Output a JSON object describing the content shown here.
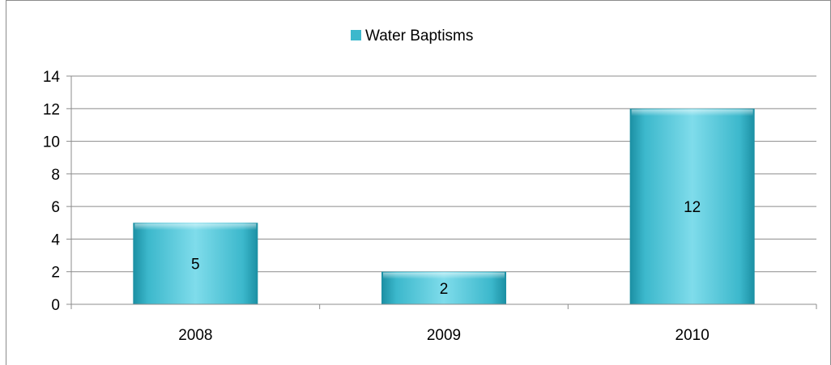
{
  "colors": {
    "bar_light": "#7fdceb",
    "bar_mid": "#3cb8cc",
    "bar_dark": "#1b8fa3",
    "gridline": "#8c8c8c",
    "axis": "#8c8c8c"
  },
  "chart_data": {
    "type": "bar",
    "categories": [
      "2008",
      "2009",
      "2010"
    ],
    "series": [
      {
        "name": "Water Baptisms",
        "values": [
          5,
          2,
          12
        ]
      }
    ],
    "data_labels": [
      "5",
      "2",
      "12"
    ],
    "ylim": [
      0,
      14
    ],
    "yticks": [
      0,
      2,
      4,
      6,
      8,
      10,
      12,
      14
    ],
    "grid": true,
    "legend": "top-center",
    "title": "",
    "xlabel": "",
    "ylabel": ""
  }
}
